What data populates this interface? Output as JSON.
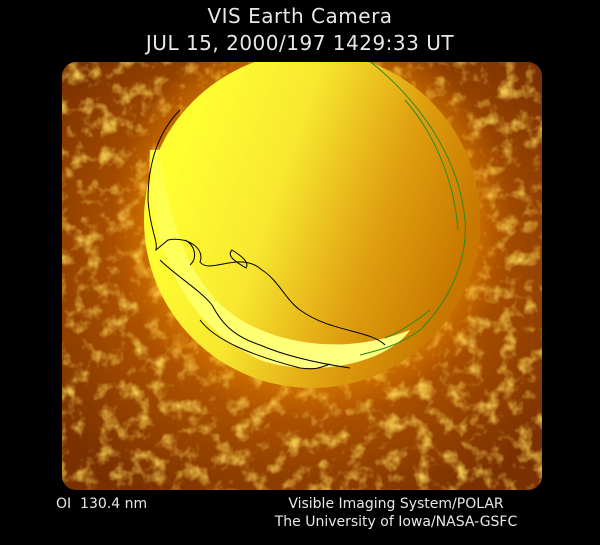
{
  "header": {
    "title": "VIS Earth Camera",
    "timestamp": "JUL 15, 2000/197 1429:33 UT"
  },
  "footer": {
    "wavelength": "OI  130.4 nm",
    "instrument": "Visible Imaging System/POLAR",
    "institution": "The University of Iowa/NASA-GSFC"
  }
}
